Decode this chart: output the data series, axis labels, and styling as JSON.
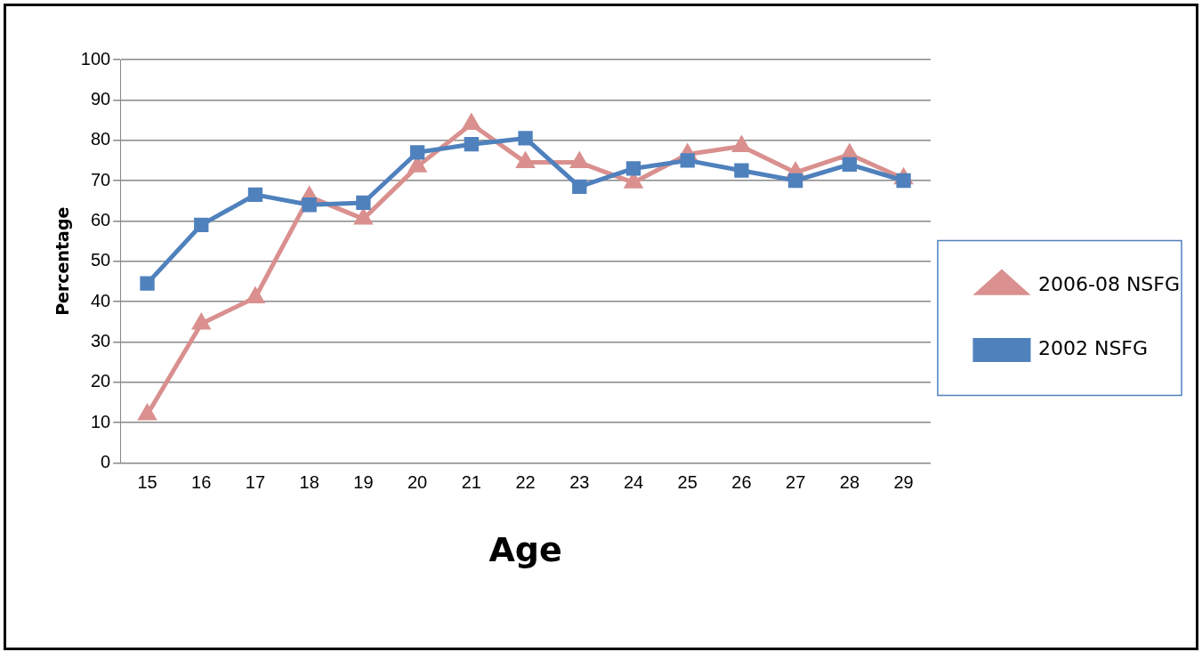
{
  "chart_data": {
    "type": "line",
    "xlabel": "Age",
    "ylabel": "Percentage",
    "categories": [
      "15",
      "16",
      "17",
      "18",
      "19",
      "20",
      "21",
      "22",
      "23",
      "24",
      "25",
      "26",
      "27",
      "28",
      "29"
    ],
    "series": [
      {
        "name": "2006-08 NSFG",
        "color": "#d9908e",
        "marker": "triangle",
        "values": [
          12,
          34.5,
          41,
          66,
          60.5,
          73.5,
          84,
          74.5,
          74.5,
          69.5,
          76.5,
          78.5,
          72,
          76.5,
          70.5
        ]
      },
      {
        "name": "2002 NSFG",
        "color": "#4f81bd",
        "marker": "square",
        "values": [
          44.5,
          59,
          66.5,
          64,
          64.5,
          77,
          79,
          80.5,
          68.5,
          73,
          75,
          72.5,
          70,
          74,
          70
        ]
      }
    ],
    "ylim": [
      0,
      100
    ],
    "yticks": [
      0,
      10,
      20,
      30,
      40,
      50,
      60,
      70,
      80,
      90,
      100
    ],
    "grid": "y",
    "legend": "right",
    "line_style": "solid"
  }
}
